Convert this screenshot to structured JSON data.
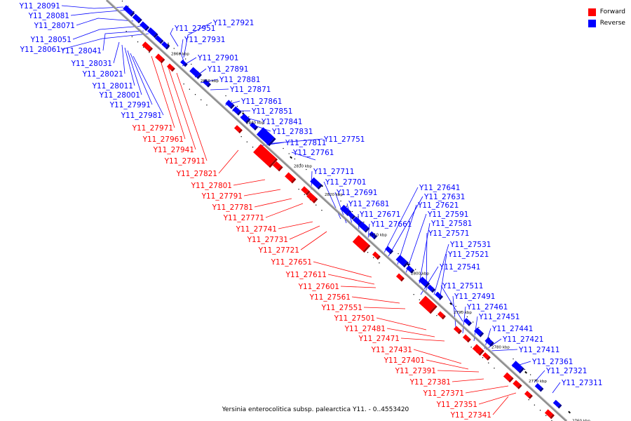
{
  "legend": {
    "forward_label": "Forward",
    "reverse_label": "Reverse",
    "forward_color": "#ff0000",
    "reverse_color": "#0000ff"
  },
  "caption": "Yersinia enterocolitica subsp. palearctica Y11. - 0..4553420",
  "axis_ticks": [
    "2860 kbp",
    "2850 kbp",
    "2840 kbp",
    "2830 kbp",
    "2820 kbp",
    "2810 kbp",
    "2800 kbp",
    "2790 kbp",
    "2780 kbp",
    "2770 kbp",
    "2760 kbp"
  ],
  "reverse_labels": [
    "Y11_28091",
    "Y11_28081",
    "Y11_28071",
    "Y11_28051",
    "Y11_28041",
    "Y11_28061",
    "Y11_28031",
    "Y11_28021",
    "Y11_28011",
    "Y11_28001",
    "Y11_27991",
    "Y11_27981",
    "Y11_27951",
    "Y11_27921",
    "Y11_27931",
    "Y11_27901",
    "Y11_27891",
    "Y11_27881",
    "Y11_27871",
    "Y11_27861",
    "Y11_27851",
    "Y11_27841",
    "Y11_27831",
    "Y11_27751",
    "Y11_27811",
    "Y11_27761",
    "Y11_27711",
    "Y11_27701",
    "Y11_27691",
    "Y11_27681",
    "Y11_27671",
    "Y11_27661",
    "Y11_27641",
    "Y11_27631",
    "Y11_27621",
    "Y11_27591",
    "Y11_27581",
    "Y11_27571",
    "Y11_27531",
    "Y11_27521",
    "Y11_27541",
    "Y11_27511",
    "Y11_27491",
    "Y11_27461",
    "Y11_27451",
    "Y11_27441",
    "Y11_27421",
    "Y11_27411",
    "Y11_27361",
    "Y11_27321",
    "Y11_27311"
  ],
  "forward_labels": [
    "Y11_27971",
    "Y11_27961",
    "Y11_27941",
    "Y11_27911",
    "Y11_27821",
    "Y11_27801",
    "Y11_27791",
    "Y11_27781",
    "Y11_27771",
    "Y11_27741",
    "Y11_27731",
    "Y11_27721",
    "Y11_27651",
    "Y11_27611",
    "Y11_27601",
    "Y11_27561",
    "Y11_27551",
    "Y11_27501",
    "Y11_27481",
    "Y11_27471",
    "Y11_27431",
    "Y11_27401",
    "Y11_27391",
    "Y11_27381",
    "Y11_27371",
    "Y11_27351",
    "Y11_27341"
  ]
}
